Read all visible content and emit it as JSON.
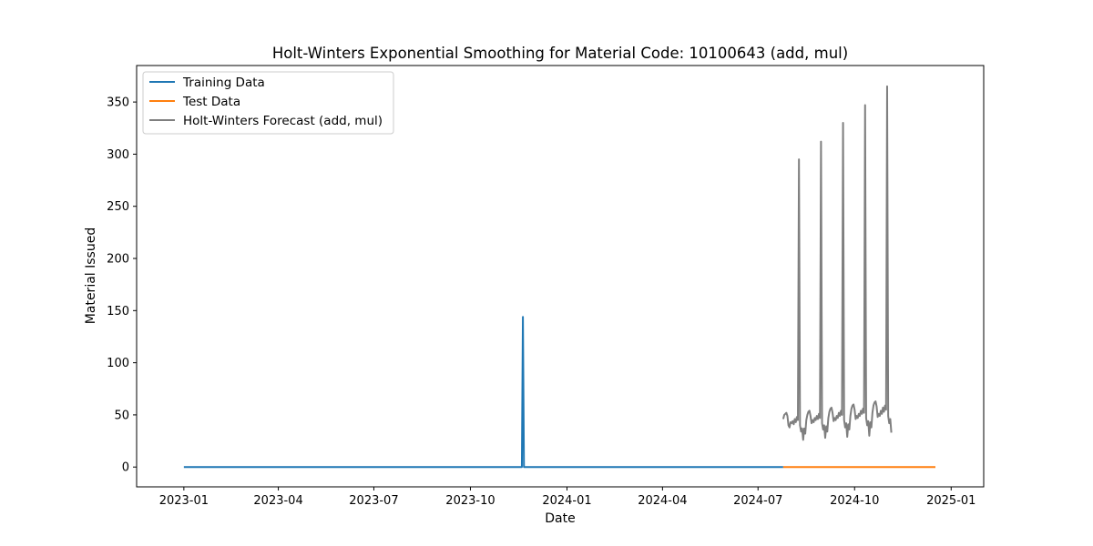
{
  "chart_data": {
    "type": "line",
    "title": "Holt-Winters Exponential Smoothing for Material Code: 10100643 (add, mul)",
    "xlabel": "Date",
    "ylabel": "Material Issued",
    "xlim": [
      "2022-11-17",
      "2025-02-01"
    ],
    "ylim": [
      -19,
      385
    ],
    "x_ticks": [
      {
        "date": "2023-01-01",
        "label": "2023-01"
      },
      {
        "date": "2023-04-01",
        "label": "2023-04"
      },
      {
        "date": "2023-07-01",
        "label": "2023-07"
      },
      {
        "date": "2023-10-01",
        "label": "2023-10"
      },
      {
        "date": "2024-01-01",
        "label": "2024-01"
      },
      {
        "date": "2024-04-01",
        "label": "2024-04"
      },
      {
        "date": "2024-07-01",
        "label": "2024-07"
      },
      {
        "date": "2024-10-01",
        "label": "2024-10"
      },
      {
        "date": "2025-01-01",
        "label": "2025-01"
      }
    ],
    "y_ticks": [
      0,
      50,
      100,
      150,
      200,
      250,
      300,
      350
    ],
    "grid": false,
    "legend_position": "top-left",
    "series": [
      {
        "name": "Training Data",
        "color": "#1f77b4",
        "points": [
          [
            "2023-01-01",
            0
          ],
          [
            "2023-11-19",
            0
          ],
          [
            "2023-11-20",
            144
          ],
          [
            "2023-11-21",
            0
          ],
          [
            "2024-07-25",
            0
          ]
        ]
      },
      {
        "name": "Test Data",
        "color": "#ff7f0e",
        "points": [
          [
            "2024-07-25",
            0
          ],
          [
            "2024-12-17",
            0
          ]
        ]
      },
      {
        "name": "Holt-Winters Forecast (add, mul)",
        "color": "#7f7f7f",
        "points": [
          [
            "2024-07-25",
            46
          ],
          [
            "2024-07-26",
            50
          ],
          [
            "2024-07-27",
            51
          ],
          [
            "2024-07-28",
            52
          ],
          [
            "2024-07-29",
            49
          ],
          [
            "2024-07-30",
            40
          ],
          [
            "2024-07-31",
            38
          ],
          [
            "2024-08-01",
            43
          ],
          [
            "2024-08-02",
            42
          ],
          [
            "2024-08-03",
            44
          ],
          [
            "2024-08-04",
            41
          ],
          [
            "2024-08-05",
            46
          ],
          [
            "2024-08-06",
            43
          ],
          [
            "2024-08-07",
            48
          ],
          [
            "2024-08-08",
            45
          ],
          [
            "2024-08-09",
            295
          ],
          [
            "2024-08-10",
            40
          ],
          [
            "2024-08-11",
            34
          ],
          [
            "2024-08-12",
            37
          ],
          [
            "2024-08-13",
            26
          ],
          [
            "2024-08-14",
            37
          ],
          [
            "2024-08-15",
            32
          ],
          [
            "2024-08-16",
            45
          ],
          [
            "2024-08-17",
            50
          ],
          [
            "2024-08-18",
            53
          ],
          [
            "2024-08-19",
            54
          ],
          [
            "2024-08-20",
            49
          ],
          [
            "2024-08-21",
            42
          ],
          [
            "2024-08-22",
            45
          ],
          [
            "2024-08-23",
            43
          ],
          [
            "2024-08-24",
            47
          ],
          [
            "2024-08-25",
            45
          ],
          [
            "2024-08-26",
            49
          ],
          [
            "2024-08-27",
            46
          ],
          [
            "2024-08-28",
            51
          ],
          [
            "2024-08-29",
            47
          ],
          [
            "2024-08-30",
            312
          ],
          [
            "2024-08-31",
            42
          ],
          [
            "2024-09-01",
            36
          ],
          [
            "2024-09-02",
            40
          ],
          [
            "2024-09-03",
            28
          ],
          [
            "2024-09-04",
            39
          ],
          [
            "2024-09-05",
            34
          ],
          [
            "2024-09-06",
            47
          ],
          [
            "2024-09-07",
            53
          ],
          [
            "2024-09-08",
            56
          ],
          [
            "2024-09-09",
            57
          ],
          [
            "2024-09-10",
            52
          ],
          [
            "2024-09-11",
            44
          ],
          [
            "2024-09-12",
            47
          ],
          [
            "2024-09-13",
            45
          ],
          [
            "2024-09-14",
            49
          ],
          [
            "2024-09-15",
            47
          ],
          [
            "2024-09-16",
            52
          ],
          [
            "2024-09-17",
            49
          ],
          [
            "2024-09-18",
            54
          ],
          [
            "2024-09-19",
            50
          ],
          [
            "2024-09-20",
            330
          ],
          [
            "2024-09-21",
            45
          ],
          [
            "2024-09-22",
            38
          ],
          [
            "2024-09-23",
            42
          ],
          [
            "2024-09-24",
            29
          ],
          [
            "2024-09-25",
            41
          ],
          [
            "2024-09-26",
            36
          ],
          [
            "2024-09-27",
            49
          ],
          [
            "2024-09-28",
            56
          ],
          [
            "2024-09-29",
            59
          ],
          [
            "2024-09-30",
            60
          ],
          [
            "2024-10-01",
            55
          ],
          [
            "2024-10-02",
            46
          ],
          [
            "2024-10-03",
            49
          ],
          [
            "2024-10-04",
            47
          ],
          [
            "2024-10-05",
            51
          ],
          [
            "2024-10-06",
            49
          ],
          [
            "2024-10-07",
            54
          ],
          [
            "2024-10-08",
            51
          ],
          [
            "2024-10-09",
            56
          ],
          [
            "2024-10-10",
            52
          ],
          [
            "2024-10-11",
            347
          ],
          [
            "2024-10-12",
            47
          ],
          [
            "2024-10-13",
            40
          ],
          [
            "2024-10-14",
            44
          ],
          [
            "2024-10-15",
            30
          ],
          [
            "2024-10-16",
            43
          ],
          [
            "2024-10-17",
            38
          ],
          [
            "2024-10-18",
            52
          ],
          [
            "2024-10-19",
            59
          ],
          [
            "2024-10-20",
            62
          ],
          [
            "2024-10-21",
            63
          ],
          [
            "2024-10-22",
            58
          ],
          [
            "2024-10-23",
            48
          ],
          [
            "2024-10-24",
            51
          ],
          [
            "2024-10-25",
            49
          ],
          [
            "2024-10-26",
            54
          ],
          [
            "2024-10-27",
            51
          ],
          [
            "2024-10-28",
            57
          ],
          [
            "2024-10-29",
            53
          ],
          [
            "2024-10-30",
            59
          ],
          [
            "2024-10-31",
            55
          ],
          [
            "2024-11-01",
            365
          ],
          [
            "2024-11-02",
            49
          ],
          [
            "2024-11-03",
            42
          ],
          [
            "2024-11-04",
            46
          ],
          [
            "2024-11-05",
            33
          ]
        ]
      }
    ]
  }
}
